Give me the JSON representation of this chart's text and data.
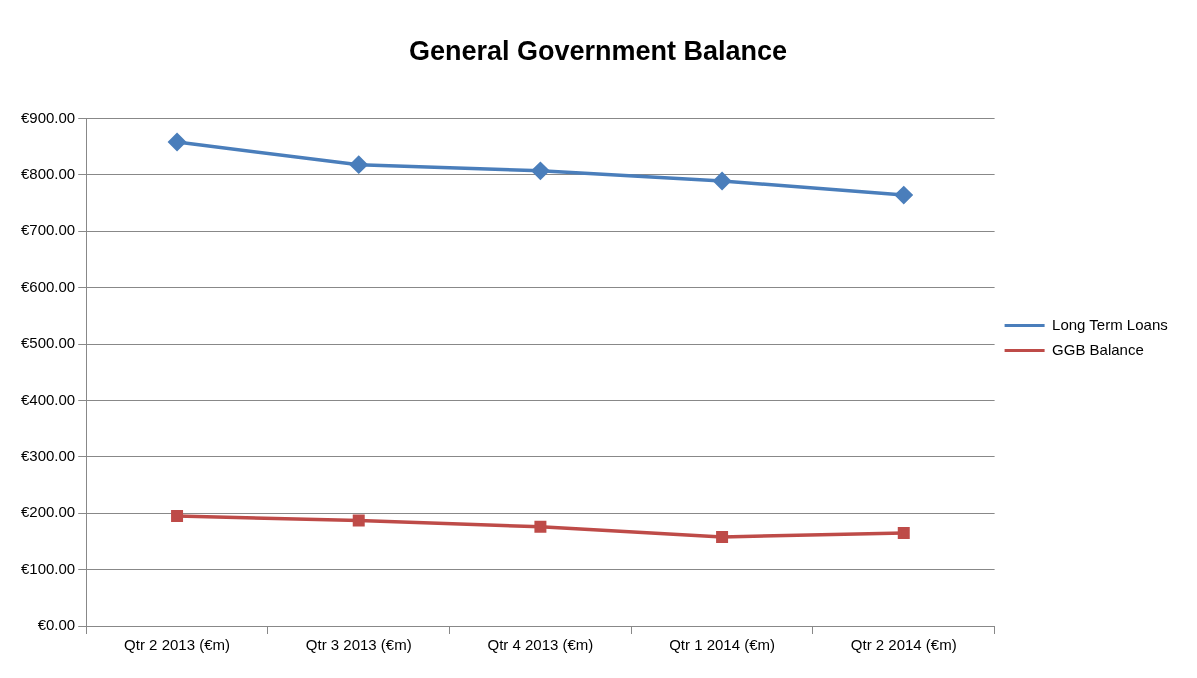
{
  "chart_data": {
    "type": "line",
    "title": "General Government Balance",
    "categories": [
      "Qtr 2 2013 (€m)",
      "Qtr 3 2013 (€m)",
      "Qtr 4 2013 (€m)",
      "Qtr 1 2014 (€m)",
      "Qtr 2 2014 (€m)"
    ],
    "series": [
      {
        "name": "Long Term Loans",
        "color": "#4a7ebb",
        "marker": "diamond",
        "values": [
          858,
          818,
          807,
          789,
          764
        ]
      },
      {
        "name": "GGB Balance",
        "color": "#be4b48",
        "marker": "square",
        "values": [
          195,
          187,
          176,
          158,
          165
        ]
      }
    ],
    "ylim": [
      0,
      900
    ],
    "yticks": [
      {
        "value": 0,
        "label": "€0.00"
      },
      {
        "value": 100,
        "label": "€100.00"
      },
      {
        "value": 200,
        "label": "€200.00"
      },
      {
        "value": 300,
        "label": "€300.00"
      },
      {
        "value": 400,
        "label": "€400.00"
      },
      {
        "value": 500,
        "label": "€500.00"
      },
      {
        "value": 600,
        "label": "€600.00"
      },
      {
        "value": 700,
        "label": "€700.00"
      },
      {
        "value": 800,
        "label": "€800.00"
      },
      {
        "value": 900,
        "label": "€900.00"
      }
    ],
    "grid": "y",
    "legend": "right",
    "line_style": "solid"
  }
}
